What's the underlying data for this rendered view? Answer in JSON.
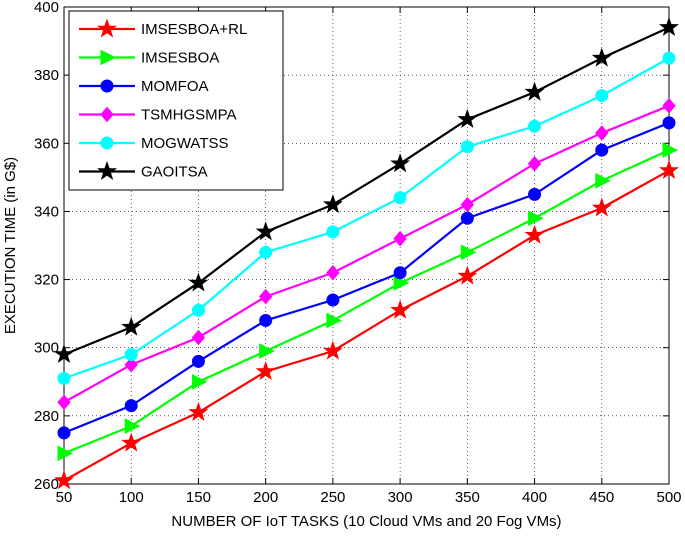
{
  "chart_data": {
    "type": "line",
    "title": "",
    "xlabel": "NUMBER OF IoT TASKS (10 Cloud VMs and 20 Fog VMs)",
    "ylabel": "EXECUTION TIME (in G$)",
    "xlim": [
      50,
      500
    ],
    "ylim": [
      260,
      400
    ],
    "x": [
      50,
      100,
      150,
      200,
      250,
      300,
      350,
      400,
      450,
      500
    ],
    "x_tick_labels": [
      "50",
      "100",
      "150",
      "200",
      "250",
      "300",
      "350",
      "400",
      "450",
      "500"
    ],
    "y_ticks": [
      260,
      280,
      300,
      320,
      340,
      360,
      380,
      400
    ],
    "y_tick_labels": [
      "260",
      "280",
      "300",
      "320",
      "340",
      "360",
      "380",
      "400"
    ],
    "grid": true,
    "legend_position": "top-left",
    "series": [
      {
        "name": "IMSESBOA+RL",
        "color": "#ff0000",
        "marker": "star",
        "values": [
          261,
          272,
          281,
          293,
          299,
          311,
          321,
          333,
          341,
          352
        ]
      },
      {
        "name": "IMSESBOA",
        "color": "#00ff00",
        "marker": "triangle-right",
        "values": [
          269,
          277,
          290,
          299,
          308,
          319,
          328,
          338,
          349,
          358
        ]
      },
      {
        "name": "MOMFOA",
        "color": "#0000ff",
        "marker": "circle",
        "values": [
          275,
          283,
          296,
          308,
          314,
          322,
          338,
          345,
          358,
          366
        ]
      },
      {
        "name": "TSMHGSMPA",
        "color": "#ff00ff",
        "marker": "diamond",
        "values": [
          284,
          295,
          303,
          315,
          322,
          332,
          342,
          354,
          363,
          371
        ]
      },
      {
        "name": "MOGWATSS",
        "color": "#00ffff",
        "marker": "circle",
        "values": [
          291,
          298,
          311,
          328,
          334,
          344,
          359,
          365,
          374,
          385
        ]
      },
      {
        "name": "GAOITSA",
        "color": "#000000",
        "marker": "star",
        "values": [
          298,
          306,
          319,
          334,
          342,
          354,
          367,
          375,
          385,
          394
        ]
      }
    ]
  }
}
